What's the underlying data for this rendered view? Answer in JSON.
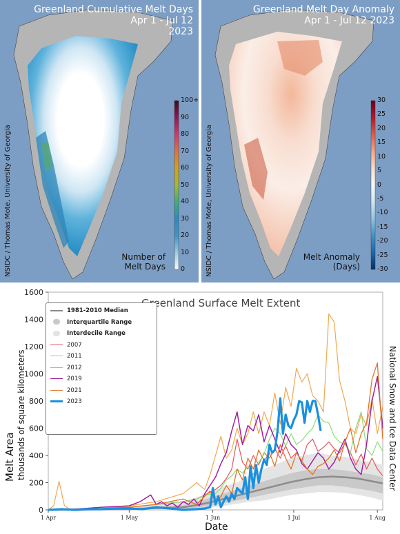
{
  "maps": {
    "left": {
      "title_line1": "Greenland Cumulative Melt Days",
      "title_line2": "Apr 1 - Jul 12",
      "title_line3": "2023",
      "credit": "NSIDC / Thomas Mote, University of Georgia",
      "colorbar_labels": [
        "100+",
        "90",
        "80",
        "70",
        "60",
        "50",
        "40",
        "30",
        "20",
        "10",
        "0"
      ],
      "colorbar_title_line1": "Number of",
      "colorbar_title_line2": "Melt Days",
      "colors": [
        "#f7fbff",
        "#9ecae1",
        "#4292c6",
        "#2b8cbe",
        "#41ae76",
        "#a8b832",
        "#d4a017",
        "#e07040",
        "#d03a6a",
        "#8a1a55",
        "#3a0a20"
      ]
    },
    "right": {
      "title_line1": "Greenland Melt Day Anomaly",
      "title_line2": "Apr 1 - Jul 12 2023",
      "credit": "NSIDC / Thomas Mote, University of Georgia",
      "colorbar_labels": [
        "30",
        "25",
        "20",
        "15",
        "10",
        "5",
        "0",
        "-5",
        "-10",
        "-15",
        "-20",
        "-25",
        "-30"
      ],
      "colorbar_title_line1": "Melt Anomaly",
      "colorbar_title_line2": "(Days)",
      "colors": [
        "#67001f",
        "#b2182b",
        "#d6604d",
        "#f4a582",
        "#fddbc7",
        "#f7f7f7",
        "#d1e5f0",
        "#92c5de",
        "#4393c3",
        "#2166ac",
        "#053061"
      ]
    }
  },
  "chart": {
    "ylabel_main": "Melt Area",
    "ylabel_sub": "thousands of square kilometers",
    "side_credit": "National Snow and Ice Data Center"
  },
  "chart_data": {
    "type": "line",
    "title": "Greenland Surface Melt Extent",
    "xlabel": "Date",
    "ylabel": "Melt Area thousands of square kilometers",
    "x_ticks": [
      "1 Apr",
      "1 May",
      "1 Jun",
      "1 Jul",
      "1 Aug"
    ],
    "x_tick_days": [
      0,
      30,
      61,
      91,
      122
    ],
    "xlim": [
      0,
      124
    ],
    "ylim": [
      0,
      1600
    ],
    "y_ticks": [
      0,
      200,
      400,
      600,
      800,
      1000,
      1200,
      1400,
      1600
    ],
    "legend_position": "top-left",
    "bands": [
      {
        "name": "Interdecile Range",
        "color": "#e4e4e4",
        "x": [
          0,
          30,
          50,
          55,
          60,
          65,
          70,
          75,
          80,
          85,
          90,
          95,
          100,
          105,
          110,
          115,
          120,
          124
        ],
        "lower": [
          0,
          0,
          0,
          5,
          15,
          30,
          45,
          60,
          70,
          90,
          110,
          120,
          130,
          130,
          125,
          110,
          90,
          70
        ],
        "upper": [
          10,
          25,
          60,
          90,
          130,
          170,
          200,
          260,
          300,
          340,
          380,
          400,
          420,
          400,
          390,
          370,
          350,
          330
        ]
      },
      {
        "name": "Interquartile Range",
        "color": "#c9c9c9",
        "x": [
          0,
          30,
          50,
          55,
          60,
          65,
          70,
          75,
          80,
          85,
          90,
          95,
          100,
          105,
          110,
          115,
          120,
          124
        ],
        "lower": [
          0,
          2,
          5,
          15,
          30,
          50,
          70,
          90,
          110,
          130,
          150,
          165,
          180,
          180,
          170,
          155,
          140,
          120
        ],
        "upper": [
          5,
          15,
          35,
          60,
          90,
          120,
          150,
          180,
          210,
          240,
          270,
          290,
          300,
          300,
          290,
          275,
          260,
          240
        ]
      }
    ],
    "series": [
      {
        "name": "1981-2010 Median",
        "color": "#8c8c8c",
        "width": 2.5,
        "x": [
          0,
          30,
          50,
          55,
          60,
          65,
          70,
          75,
          80,
          85,
          90,
          95,
          100,
          105,
          110,
          115,
          120,
          124
        ],
        "y": [
          0,
          5,
          20,
          35,
          55,
          80,
          105,
          130,
          155,
          180,
          205,
          225,
          240,
          245,
          240,
          230,
          210,
          195
        ]
      },
      {
        "name": "2007",
        "color": "#e8535b",
        "width": 1.2,
        "x": [
          0,
          10,
          20,
          30,
          40,
          50,
          55,
          58,
          62,
          64,
          66,
          68,
          70,
          72,
          74,
          76,
          78,
          80,
          82,
          84,
          86,
          88,
          90,
          92,
          94,
          96,
          98,
          100,
          102,
          104,
          106,
          108,
          110,
          112,
          114,
          116,
          118,
          120,
          122,
          124
        ],
        "y": [
          0,
          5,
          10,
          20,
          40,
          60,
          80,
          110,
          150,
          180,
          230,
          300,
          520,
          350,
          300,
          400,
          330,
          420,
          380,
          450,
          380,
          470,
          380,
          420,
          360,
          480,
          520,
          430,
          460,
          500,
          450,
          420,
          490,
          420,
          330,
          410,
          300,
          380,
          300,
          250
        ]
      },
      {
        "name": "2011",
        "color": "#8fd97a",
        "width": 1.2,
        "x": [
          0,
          10,
          20,
          30,
          40,
          50,
          55,
          58,
          62,
          64,
          66,
          68,
          70,
          72,
          74,
          76,
          78,
          80,
          82,
          84,
          86,
          88,
          90,
          92,
          94,
          96,
          98,
          100,
          102,
          104,
          106,
          108,
          110,
          112,
          114,
          116,
          118,
          120,
          122,
          124
        ],
        "y": [
          0,
          5,
          10,
          20,
          40,
          60,
          80,
          110,
          120,
          160,
          220,
          250,
          300,
          270,
          320,
          260,
          350,
          410,
          520,
          600,
          560,
          470,
          560,
          480,
          510,
          560,
          600,
          700,
          650,
          640,
          540,
          500,
          480,
          420,
          600,
          720,
          450,
          400,
          500,
          430
        ]
      },
      {
        "name": "2012",
        "color": "#f2a74f",
        "width": 1.2,
        "x": [
          0,
          2,
          4,
          6,
          8,
          10,
          20,
          30,
          40,
          50,
          55,
          58,
          60,
          62,
          64,
          66,
          68,
          70,
          72,
          74,
          76,
          78,
          80,
          82,
          84,
          86,
          88,
          90,
          92,
          94,
          96,
          98,
          100,
          102,
          104,
          106,
          108,
          110,
          112,
          114,
          116,
          118,
          120,
          122,
          124
        ],
        "y": [
          0,
          30,
          210,
          30,
          5,
          5,
          10,
          30,
          60,
          120,
          200,
          150,
          260,
          400,
          540,
          380,
          440,
          600,
          480,
          560,
          720,
          560,
          720,
          620,
          860,
          630,
          900,
          760,
          1040,
          940,
          1000,
          840,
          800,
          720,
          1440,
          1380,
          950,
          800,
          600,
          560,
          700,
          620,
          820,
          560,
          760
        ]
      },
      {
        "name": "2019",
        "color": "#a020a0",
        "width": 1.5,
        "x": [
          0,
          10,
          20,
          30,
          34,
          38,
          40,
          42,
          44,
          46,
          48,
          50,
          52,
          54,
          56,
          58,
          60,
          62,
          64,
          66,
          68,
          70,
          72,
          74,
          76,
          78,
          80,
          82,
          84,
          86,
          88,
          90,
          92,
          94,
          96,
          98,
          100,
          102,
          104,
          106,
          108,
          110,
          112,
          114,
          116,
          118,
          120,
          122,
          124
        ],
        "y": [
          0,
          5,
          20,
          30,
          60,
          110,
          40,
          60,
          30,
          50,
          20,
          60,
          40,
          80,
          30,
          120,
          180,
          240,
          340,
          420,
          580,
          720,
          480,
          620,
          580,
          700,
          500,
          620,
          520,
          420,
          560,
          480,
          440,
          340,
          300,
          360,
          420,
          380,
          300,
          350,
          440,
          520,
          380,
          300,
          260,
          480,
          800,
          980,
          600
        ]
      },
      {
        "name": "2021",
        "color": "#e0742a",
        "width": 1.3,
        "x": [
          0,
          10,
          20,
          30,
          40,
          50,
          55,
          58,
          60,
          62,
          64,
          66,
          68,
          70,
          72,
          74,
          76,
          78,
          80,
          82,
          84,
          86,
          88,
          90,
          92,
          94,
          96,
          98,
          100,
          102,
          104,
          106,
          108,
          110,
          112,
          114,
          116,
          118,
          120,
          122,
          124
        ],
        "y": [
          0,
          5,
          10,
          20,
          40,
          80,
          40,
          100,
          140,
          60,
          100,
          180,
          120,
          300,
          220,
          380,
          300,
          440,
          360,
          420,
          320,
          480,
          380,
          300,
          420,
          360,
          300,
          260,
          320,
          340,
          380,
          440,
          360,
          500,
          600,
          420,
          560,
          640,
          960,
          1080,
          520
        ]
      },
      {
        "name": "2023",
        "color": "#1a8fe0",
        "width": 3.2,
        "x": [
          0,
          5,
          10,
          15,
          20,
          25,
          30,
          35,
          40,
          45,
          50,
          55,
          58,
          60,
          61,
          62,
          63,
          64,
          65,
          66,
          67,
          68,
          69,
          70,
          71,
          72,
          73,
          74,
          75,
          76,
          77,
          78,
          79,
          80,
          81,
          82,
          83,
          84,
          85,
          86,
          87,
          88,
          89,
          90,
          91,
          92,
          93,
          94,
          95,
          96,
          97,
          98,
          99,
          100,
          101
        ],
        "y": [
          0,
          5,
          0,
          5,
          5,
          10,
          10,
          5,
          20,
          10,
          0,
          5,
          10,
          20,
          160,
          40,
          100,
          20,
          60,
          100,
          60,
          120,
          80,
          160,
          140,
          120,
          240,
          80,
          320,
          160,
          330,
          200,
          300,
          370,
          330,
          480,
          420,
          440,
          580,
          820,
          560,
          700,
          620,
          600,
          660,
          700,
          800,
          790,
          640,
          800,
          720,
          800,
          800,
          700,
          580
        ]
      }
    ]
  }
}
